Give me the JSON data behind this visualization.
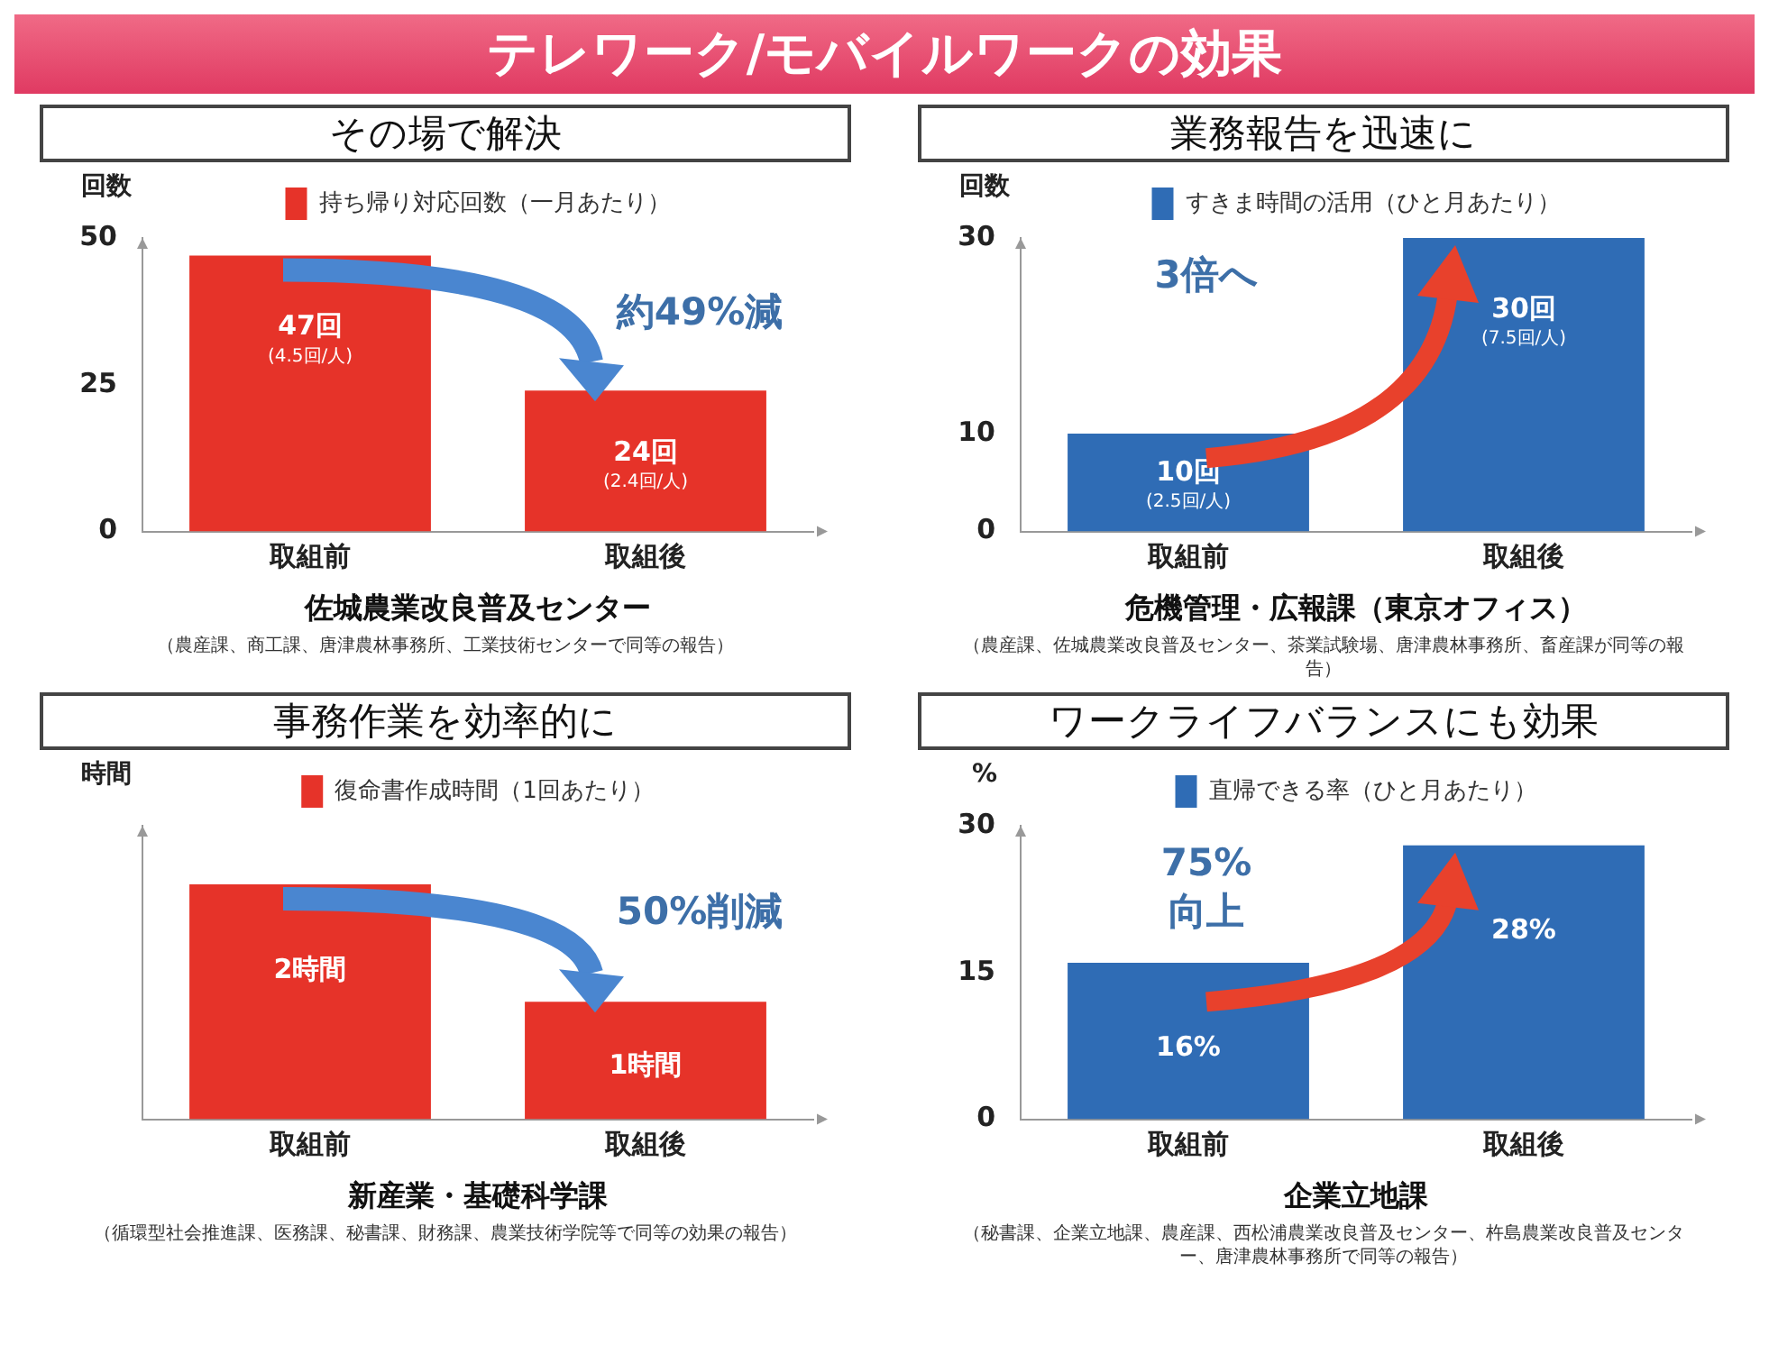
{
  "chart_data": [
    {
      "type": "other",
      "title": "テレワーク/モバイルワークの効果"
    },
    {
      "type": "bar",
      "title": "その場で解決",
      "ylabel": "回数",
      "xlabel": "佐城農業改良普及センター",
      "categories": [
        "取組前",
        "取組後"
      ],
      "series": [
        {
          "name": "持ち帰り対応回数（一月あたり）",
          "color": "#e63329",
          "values": [
            47,
            24
          ],
          "value_labels": [
            "47回\n(4.5回/人)",
            "24回\n(2.4回/人)"
          ]
        }
      ],
      "ylim": [
        0,
        50
      ],
      "yticks": [
        0,
        25,
        50
      ],
      "grid": false,
      "legend": "top",
      "annotations": [
        "約49%減",
        "（農産課、商工課、唐津農林事務所、工業技術センターで同等の報告）"
      ]
    },
    {
      "type": "bar",
      "title": "業務報告を迅速に",
      "ylabel": "回数",
      "xlabel": "危機管理・広報課（東京オフィス）",
      "categories": [
        "取組前",
        "取組後"
      ],
      "series": [
        {
          "name": "すきま時間の活用（ひと月あたり）",
          "color": "#2f6cb5",
          "values": [
            10,
            30
          ],
          "value_labels": [
            "10回\n(2.5回/人)",
            "30回\n(7.5回/人)"
          ]
        }
      ],
      "ylim": [
        0,
        30
      ],
      "yticks": [
        0,
        10,
        30
      ],
      "grid": false,
      "legend": "top",
      "annotations": [
        "3倍へ",
        "（農産課、佐城農業改良普及センター、茶業試験場、唐津農林事務所、畜産課が同等の報告）"
      ]
    },
    {
      "type": "bar",
      "title": "事務作業を効率的に",
      "ylabel": "時間",
      "xlabel": "新産業・基礎科学課",
      "categories": [
        "取組前",
        "取組後"
      ],
      "series": [
        {
          "name": "復命書作成時間（1回あたり）",
          "color": "#e63329",
          "values": [
            2,
            1
          ],
          "value_labels": [
            "2時間",
            "1時間"
          ]
        }
      ],
      "grid": false,
      "legend": "top",
      "tick_labels": "x",
      "annotations": [
        "50%削減",
        "（循環型社会推進課、医務課、秘書課、財務課、農業技術学院等で同等の効果の報告）"
      ]
    },
    {
      "type": "bar",
      "title": "ワークライフバランスにも効果",
      "ylabel": "%",
      "xlabel": "企業立地課",
      "categories": [
        "取組前",
        "取組後"
      ],
      "series": [
        {
          "name": "直帰できる率（ひと月あたり）",
          "color": "#2f6cb5",
          "values": [
            16,
            28
          ],
          "value_labels": [
            "16%",
            "28%"
          ]
        }
      ],
      "ylim": [
        0,
        30
      ],
      "yticks": [
        0,
        15,
        30
      ],
      "grid": false,
      "legend": "top",
      "annotations": [
        "75%\n向上",
        "（秘書課、企業立地課、農産課、西松浦農業改良普及センター、杵島農業改良普及センター、唐津農林事務所で同等の報告）"
      ]
    }
  ]
}
